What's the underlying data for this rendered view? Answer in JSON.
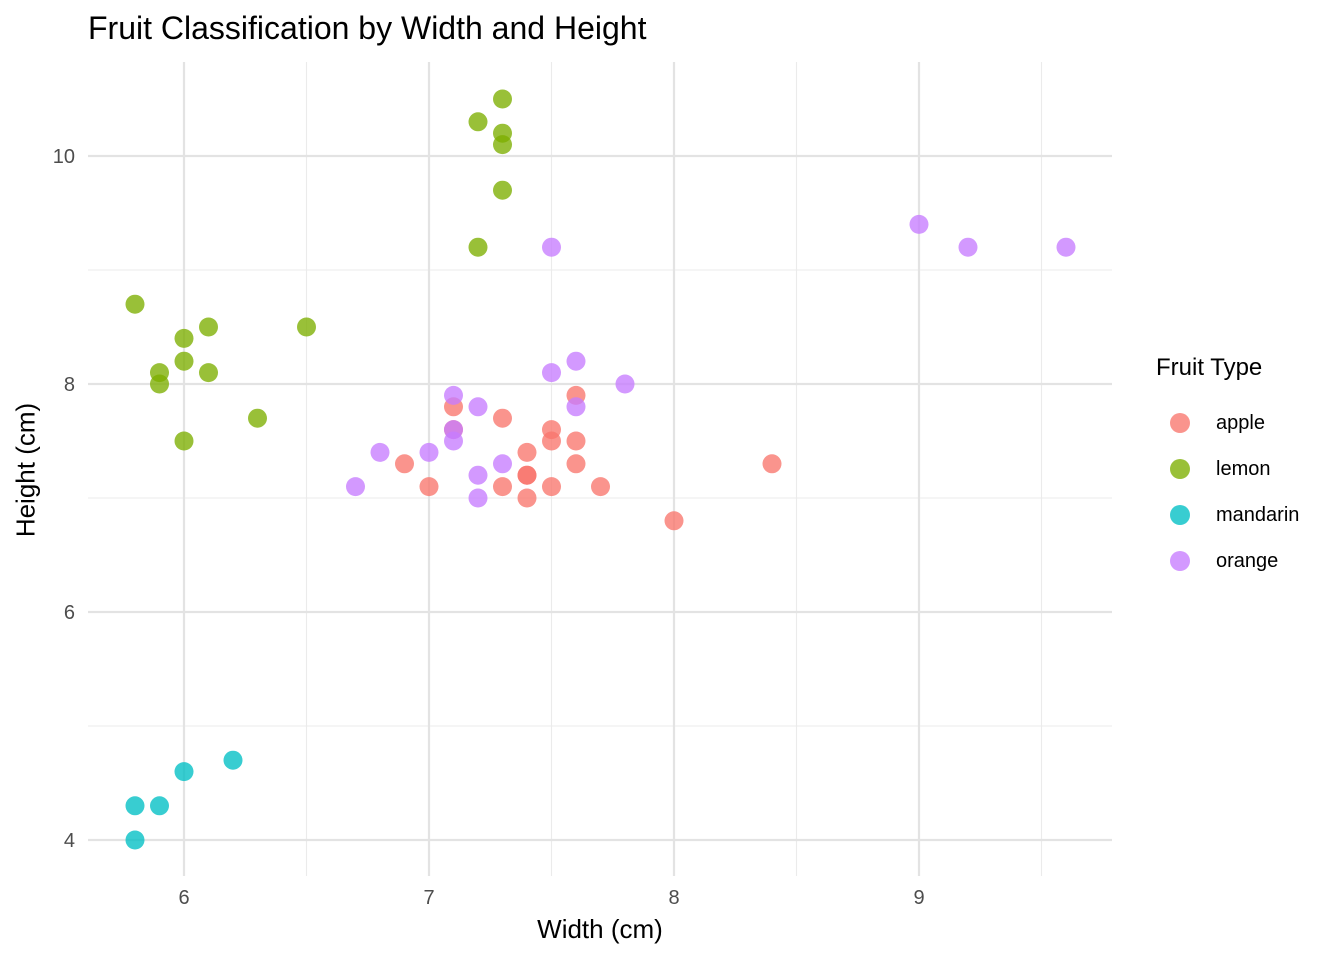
{
  "chart_data": {
    "type": "scatter",
    "title": "Fruit Classification by Width and Height",
    "xlabel": "Width (cm)",
    "ylabel": "Height (cm)",
    "xlim": [
      5.6,
      9.8
    ],
    "ylim": [
      3.7,
      10.8
    ],
    "x_ticks": [
      6,
      7,
      8,
      9
    ],
    "y_ticks": [
      4,
      6,
      8,
      10
    ],
    "grid": true,
    "legend": {
      "title": "Fruit Type",
      "placement": "right"
    },
    "series": [
      {
        "name": "apple",
        "color": "#F8766D",
        "points": [
          [
            6.9,
            7.3
          ],
          [
            7.0,
            7.1
          ],
          [
            7.1,
            7.8
          ],
          [
            7.1,
            7.6
          ],
          [
            7.3,
            7.7
          ],
          [
            7.3,
            7.1
          ],
          [
            7.4,
            7.4
          ],
          [
            7.4,
            7.2
          ],
          [
            7.4,
            7.2
          ],
          [
            7.4,
            7.0
          ],
          [
            7.5,
            7.6
          ],
          [
            7.5,
            7.5
          ],
          [
            7.5,
            7.1
          ],
          [
            7.6,
            7.9
          ],
          [
            7.6,
            7.5
          ],
          [
            7.6,
            7.3
          ],
          [
            7.7,
            7.1
          ],
          [
            8.0,
            6.8
          ],
          [
            8.4,
            7.3
          ]
        ]
      },
      {
        "name": "lemon",
        "color": "#7CAE00",
        "points": [
          [
            5.8,
            8.7
          ],
          [
            5.9,
            8.1
          ],
          [
            5.9,
            8.0
          ],
          [
            6.0,
            8.4
          ],
          [
            6.0,
            8.2
          ],
          [
            6.0,
            7.5
          ],
          [
            6.1,
            8.5
          ],
          [
            6.1,
            8.1
          ],
          [
            6.3,
            7.7
          ],
          [
            6.5,
            8.5
          ],
          [
            7.2,
            10.3
          ],
          [
            7.2,
            9.2
          ],
          [
            7.3,
            10.5
          ],
          [
            7.3,
            10.2
          ],
          [
            7.3,
            10.1
          ],
          [
            7.3,
            9.7
          ]
        ]
      },
      {
        "name": "mandarin",
        "color": "#00BFC4",
        "points": [
          [
            5.8,
            4.3
          ],
          [
            5.8,
            4.0
          ],
          [
            5.9,
            4.3
          ],
          [
            6.0,
            4.6
          ],
          [
            6.2,
            4.7
          ]
        ]
      },
      {
        "name": "orange",
        "color": "#C77CFF",
        "points": [
          [
            6.7,
            7.1
          ],
          [
            6.8,
            7.4
          ],
          [
            7.0,
            7.4
          ],
          [
            7.1,
            7.9
          ],
          [
            7.1,
            7.6
          ],
          [
            7.1,
            7.5
          ],
          [
            7.2,
            7.8
          ],
          [
            7.2,
            7.2
          ],
          [
            7.2,
            7.0
          ],
          [
            7.3,
            7.3
          ],
          [
            7.5,
            9.2
          ],
          [
            7.5,
            8.1
          ],
          [
            7.6,
            8.2
          ],
          [
            7.6,
            7.8
          ],
          [
            7.8,
            8.0
          ],
          [
            9.0,
            9.4
          ],
          [
            9.2,
            9.2
          ],
          [
            9.6,
            9.2
          ]
        ]
      }
    ]
  }
}
